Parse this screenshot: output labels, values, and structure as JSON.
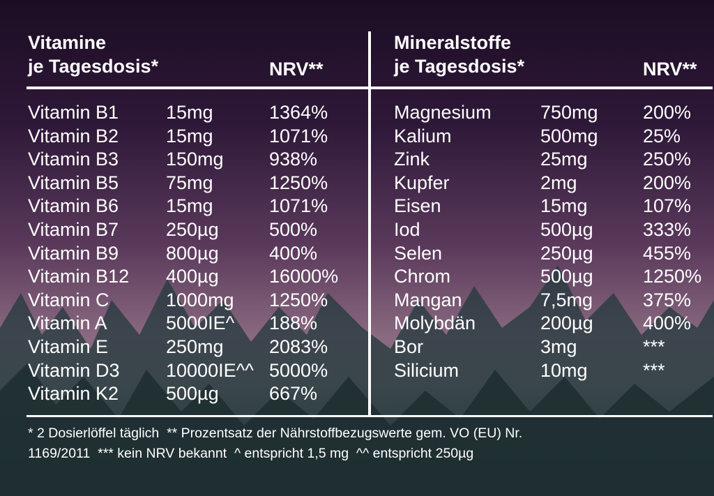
{
  "vitamins": {
    "title": "Vitamine",
    "subtitle": "je Tagesdosis*",
    "nrv_header": "NRV**",
    "rows": [
      [
        "Vitamin B1",
        "15mg",
        "1364%"
      ],
      [
        "Vitamin B2",
        "15mg",
        "1071%"
      ],
      [
        "Vitamin B3",
        "150mg",
        "938%"
      ],
      [
        "Vitamin B5",
        "75mg",
        "1250%"
      ],
      [
        "Vitamin B6",
        "15mg",
        "1071%"
      ],
      [
        "Vitamin B7",
        "250µg",
        "500%"
      ],
      [
        "Vitamin B9",
        "800µg",
        "400%"
      ],
      [
        "Vitamin B12",
        "400µg",
        "16000%"
      ],
      [
        "Vitamin C",
        "1000mg",
        "1250%"
      ],
      [
        "Vitamin A",
        "5000IE^",
        "188%"
      ],
      [
        "Vitamin E",
        "250mg",
        "2083%"
      ],
      [
        "Vitamin D3",
        "10000IE^^",
        "5000%"
      ],
      [
        "Vitamin K2",
        "500µg",
        "667%"
      ]
    ]
  },
  "minerals": {
    "title": "Mineralstoffe",
    "subtitle": "je Tagesdosis*",
    "nrv_header": "NRV**",
    "rows": [
      [
        "Magnesium",
        "750mg",
        "200%"
      ],
      [
        "Kalium",
        "500mg",
        "25%"
      ],
      [
        "Zink",
        "25mg",
        "250%"
      ],
      [
        "Kupfer",
        "2mg",
        "200%"
      ],
      [
        "Eisen",
        "15mg",
        "107%"
      ],
      [
        "Iod",
        "500µg",
        "333%"
      ],
      [
        "Selen",
        "250µg",
        "455%"
      ],
      [
        "Chrom",
        "500µg",
        "1250%"
      ],
      [
        "Mangan",
        "7,5mg",
        "375%"
      ],
      [
        "Molybdän",
        "200µg",
        "400%"
      ],
      [
        "Bor",
        "3mg",
        "***"
      ],
      [
        "Silicium",
        "10mg",
        "***"
      ]
    ]
  },
  "footnote": {
    "lines": [
      "* 2 Dosierlöffel täglich  ** Prozentsatz der Nährstoffbezugswerte gem. VO (EU) Nr.",
      "1169/2011  *** kein NRV bekannt  ^ entspricht 1,5 mg  ^^ entspricht 250µg"
    ]
  }
}
